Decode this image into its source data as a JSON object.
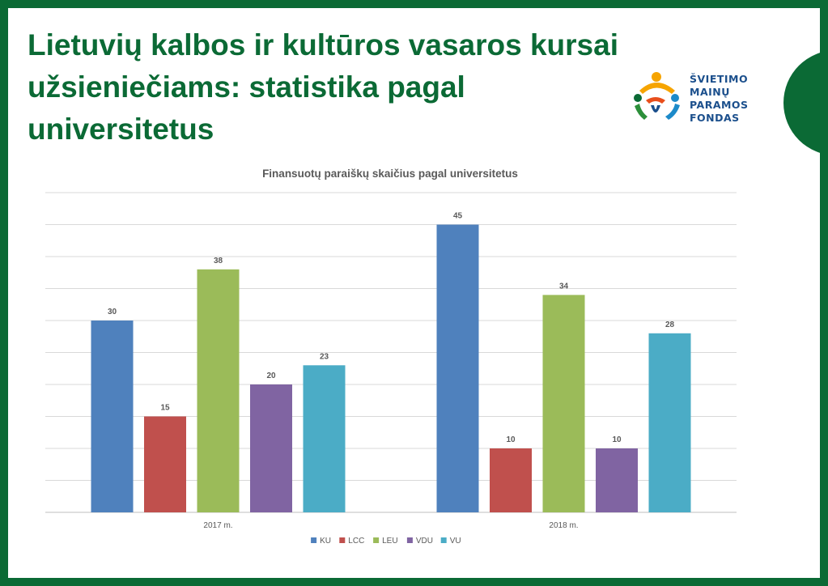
{
  "slide": {
    "title": "Lietuvių kalbos ir kultūros vasaros kursai užsieniečiams: statistika pagal universitetus",
    "accent_color": "#0b6a35"
  },
  "logo": {
    "lines": [
      "ŠVIETIMO",
      "MAINŲ",
      "PARAMOS",
      "FONDAS"
    ],
    "icon": "people-figures-logo-icon"
  },
  "chart_data": {
    "type": "bar",
    "title": "Finansuotų  paraiškų skaičius pagal universitetus",
    "xlabel": "",
    "ylabel": "",
    "categories": [
      "2017 m.",
      "2018 m."
    ],
    "series": [
      {
        "name": "KU",
        "values": [
          30,
          45
        ],
        "color": "#4f81bd"
      },
      {
        "name": "LCC",
        "values": [
          15,
          10
        ],
        "color": "#c0504d"
      },
      {
        "name": "LEU",
        "values": [
          38,
          34
        ],
        "color": "#9bbb59"
      },
      {
        "name": "VDU",
        "values": [
          20,
          10
        ],
        "color": "#8064a2"
      },
      {
        "name": "VU",
        "values": [
          23,
          28
        ],
        "color": "#4bacc6"
      }
    ],
    "ylim": [
      0,
      50
    ],
    "grid": true,
    "data_labels": true,
    "legend_position": "bottom"
  }
}
